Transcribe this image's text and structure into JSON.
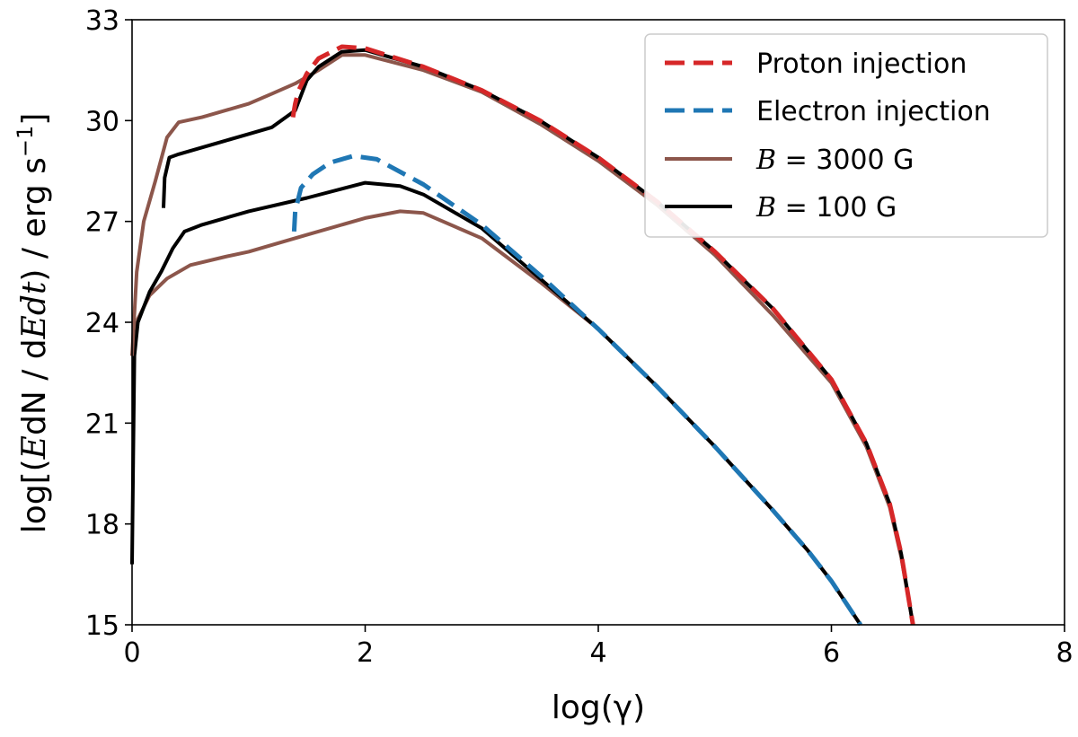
{
  "chart_data": {
    "type": "line",
    "title": "",
    "xlabel": "log(γ)",
    "ylabel": {
      "before_E": "log[(",
      "E": "E",
      "dN": "dN",
      "slash": " / d",
      "dEdt": "Edt",
      "after": ") / erg s",
      "exp": "−1",
      "close": "]"
    },
    "xlim": [
      0,
      8
    ],
    "ylim": [
      15,
      33
    ],
    "xticks": [
      0,
      2,
      4,
      6,
      8
    ],
    "yticks": [
      15,
      18,
      21,
      24,
      27,
      30,
      33
    ],
    "legend": {
      "position": "top-right",
      "entries": [
        {
          "label": "Proton injection",
          "color": "#d62728",
          "style": "dashed"
        },
        {
          "label": "Electron injection",
          "color": "#1f77b4",
          "style": "dashed"
        },
        {
          "label_var": "B",
          "label_rest": " = 3000 G",
          "color": "#8c564b",
          "style": "solid"
        },
        {
          "label_var": "B",
          "label_rest": " = 100 G",
          "color": "#000000",
          "style": "solid"
        }
      ]
    },
    "series": [
      {
        "name": "Proton injection",
        "color": "#d62728",
        "style": "dashed",
        "points": [
          [
            1.38,
            30.1
          ],
          [
            1.4,
            30.5
          ],
          [
            1.43,
            30.9
          ],
          [
            1.5,
            31.4
          ],
          [
            1.6,
            31.85
          ],
          [
            1.8,
            32.2
          ],
          [
            2.0,
            32.15
          ],
          [
            2.5,
            31.6
          ],
          [
            3.0,
            30.9
          ],
          [
            3.5,
            30.0
          ],
          [
            4.0,
            28.9
          ],
          [
            4.5,
            27.6
          ],
          [
            5.0,
            26.1
          ],
          [
            5.5,
            24.4
          ],
          [
            6.0,
            22.3
          ],
          [
            6.3,
            20.4
          ],
          [
            6.5,
            18.6
          ],
          [
            6.6,
            17.1
          ],
          [
            6.7,
            15.0
          ]
        ]
      },
      {
        "name": "Electron injection",
        "color": "#1f77b4",
        "style": "dashed",
        "points": [
          [
            1.39,
            26.7
          ],
          [
            1.4,
            27.3
          ],
          [
            1.45,
            28.0
          ],
          [
            1.55,
            28.4
          ],
          [
            1.7,
            28.75
          ],
          [
            1.9,
            28.95
          ],
          [
            2.1,
            28.85
          ],
          [
            2.5,
            28.1
          ],
          [
            3.0,
            26.9
          ],
          [
            3.5,
            25.4
          ],
          [
            4.0,
            23.8
          ],
          [
            4.5,
            22.1
          ],
          [
            5.0,
            20.3
          ],
          [
            5.5,
            18.4
          ],
          [
            5.8,
            17.2
          ],
          [
            6.0,
            16.3
          ],
          [
            6.25,
            15.0
          ]
        ]
      },
      {
        "name": "B = 3000 G (proton)",
        "color": "#8c564b",
        "style": "solid",
        "points": [
          [
            0.0,
            23.0
          ],
          [
            0.04,
            25.5
          ],
          [
            0.1,
            27.0
          ],
          [
            0.2,
            28.2
          ],
          [
            0.3,
            29.5
          ],
          [
            0.4,
            29.95
          ],
          [
            0.6,
            30.1
          ],
          [
            0.8,
            30.3
          ],
          [
            1.0,
            30.5
          ],
          [
            1.2,
            30.8
          ],
          [
            1.4,
            31.1
          ],
          [
            1.6,
            31.5
          ],
          [
            1.8,
            31.95
          ],
          [
            2.0,
            31.95
          ],
          [
            2.5,
            31.5
          ],
          [
            3.0,
            30.85
          ],
          [
            3.5,
            29.9
          ],
          [
            4.0,
            28.8
          ],
          [
            4.5,
            27.5
          ],
          [
            5.0,
            26.0
          ],
          [
            5.5,
            24.2
          ],
          [
            6.0,
            22.2
          ],
          [
            6.3,
            20.3
          ],
          [
            6.5,
            18.5
          ],
          [
            6.6,
            17.0
          ],
          [
            6.7,
            15.0
          ]
        ]
      },
      {
        "name": "B = 100 G (proton)",
        "color": "#000000",
        "style": "solid",
        "points": [
          [
            0.27,
            27.4
          ],
          [
            0.28,
            28.3
          ],
          [
            0.32,
            28.9
          ],
          [
            0.4,
            29.0
          ],
          [
            0.6,
            29.2
          ],
          [
            0.8,
            29.4
          ],
          [
            1.0,
            29.6
          ],
          [
            1.2,
            29.8
          ],
          [
            1.4,
            30.3
          ],
          [
            1.5,
            31.2
          ],
          [
            1.6,
            31.6
          ],
          [
            1.8,
            32.05
          ],
          [
            2.0,
            32.1
          ],
          [
            2.5,
            31.6
          ],
          [
            3.0,
            30.9
          ],
          [
            3.5,
            30.0
          ],
          [
            4.0,
            28.9
          ],
          [
            4.5,
            27.6
          ],
          [
            5.0,
            26.1
          ],
          [
            5.5,
            24.4
          ],
          [
            6.0,
            22.3
          ],
          [
            6.3,
            20.4
          ],
          [
            6.5,
            18.6
          ],
          [
            6.6,
            17.1
          ],
          [
            6.7,
            15.0
          ]
        ]
      },
      {
        "name": "B = 3000 G (electron)",
        "color": "#8c564b",
        "style": "solid",
        "points": [
          [
            0.0,
            23.0
          ],
          [
            0.05,
            24.1
          ],
          [
            0.15,
            24.8
          ],
          [
            0.3,
            25.3
          ],
          [
            0.5,
            25.7
          ],
          [
            0.8,
            25.95
          ],
          [
            1.0,
            26.1
          ],
          [
            1.5,
            26.6
          ],
          [
            2.0,
            27.1
          ],
          [
            2.3,
            27.3
          ],
          [
            2.5,
            27.25
          ],
          [
            3.0,
            26.5
          ],
          [
            3.5,
            25.2
          ],
          [
            4.0,
            23.8
          ],
          [
            4.5,
            22.1
          ],
          [
            5.0,
            20.3
          ],
          [
            5.5,
            18.4
          ],
          [
            5.8,
            17.2
          ],
          [
            6.0,
            16.3
          ],
          [
            6.25,
            15.0
          ]
        ]
      },
      {
        "name": "B = 100 G (electron)",
        "color": "#000000",
        "style": "solid",
        "points": [
          [
            0.0,
            16.8
          ],
          [
            0.01,
            20.0
          ],
          [
            0.02,
            23.0
          ],
          [
            0.05,
            24.0
          ],
          [
            0.15,
            24.9
          ],
          [
            0.25,
            25.5
          ],
          [
            0.35,
            26.2
          ],
          [
            0.45,
            26.7
          ],
          [
            0.6,
            26.9
          ],
          [
            0.8,
            27.1
          ],
          [
            1.0,
            27.3
          ],
          [
            1.5,
            27.7
          ],
          [
            2.0,
            28.15
          ],
          [
            2.3,
            28.05
          ],
          [
            2.5,
            27.8
          ],
          [
            3.0,
            26.8
          ],
          [
            3.5,
            25.3
          ],
          [
            4.0,
            23.8
          ],
          [
            4.5,
            22.1
          ],
          [
            5.0,
            20.3
          ],
          [
            5.5,
            18.4
          ],
          [
            5.8,
            17.2
          ],
          [
            6.0,
            16.3
          ],
          [
            6.25,
            15.0
          ]
        ]
      }
    ]
  }
}
